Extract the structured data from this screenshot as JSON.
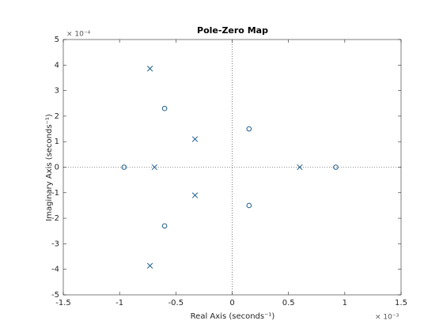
{
  "chart_data": {
    "type": "scatter",
    "title": "Pole-Zero Map",
    "xlabel": "Real Axis (seconds⁻¹)",
    "ylabel": "Imaginary Axis (seconds⁻¹)",
    "x_exponent": "× 10⁻³",
    "y_exponent": "× 10⁻⁴",
    "xlim": [
      -1.5,
      1.5
    ],
    "ylim": [
      -5,
      5
    ],
    "xticks": [
      -1.5,
      -1,
      -0.5,
      0,
      0.5,
      1,
      1.5
    ],
    "yticks": [
      -5,
      -4,
      -3,
      -2,
      -1,
      0,
      1,
      2,
      3,
      4,
      5
    ],
    "series": [
      {
        "marker": "x",
        "color": "#1f5f8f",
        "x": [
          -0.73,
          -0.33,
          -0.69,
          0.6,
          -0.33,
          -0.73
        ],
        "values": [
          3.86,
          1.1,
          0,
          0,
          -1.1,
          -3.86
        ]
      },
      {
        "marker": "o",
        "color": "#1f5f8f",
        "x": [
          -0.96,
          -0.6,
          0.15,
          0.92,
          0.15,
          -0.6
        ],
        "values": [
          0,
          2.3,
          1.5,
          0,
          -1.5,
          -2.3
        ]
      }
    ]
  }
}
